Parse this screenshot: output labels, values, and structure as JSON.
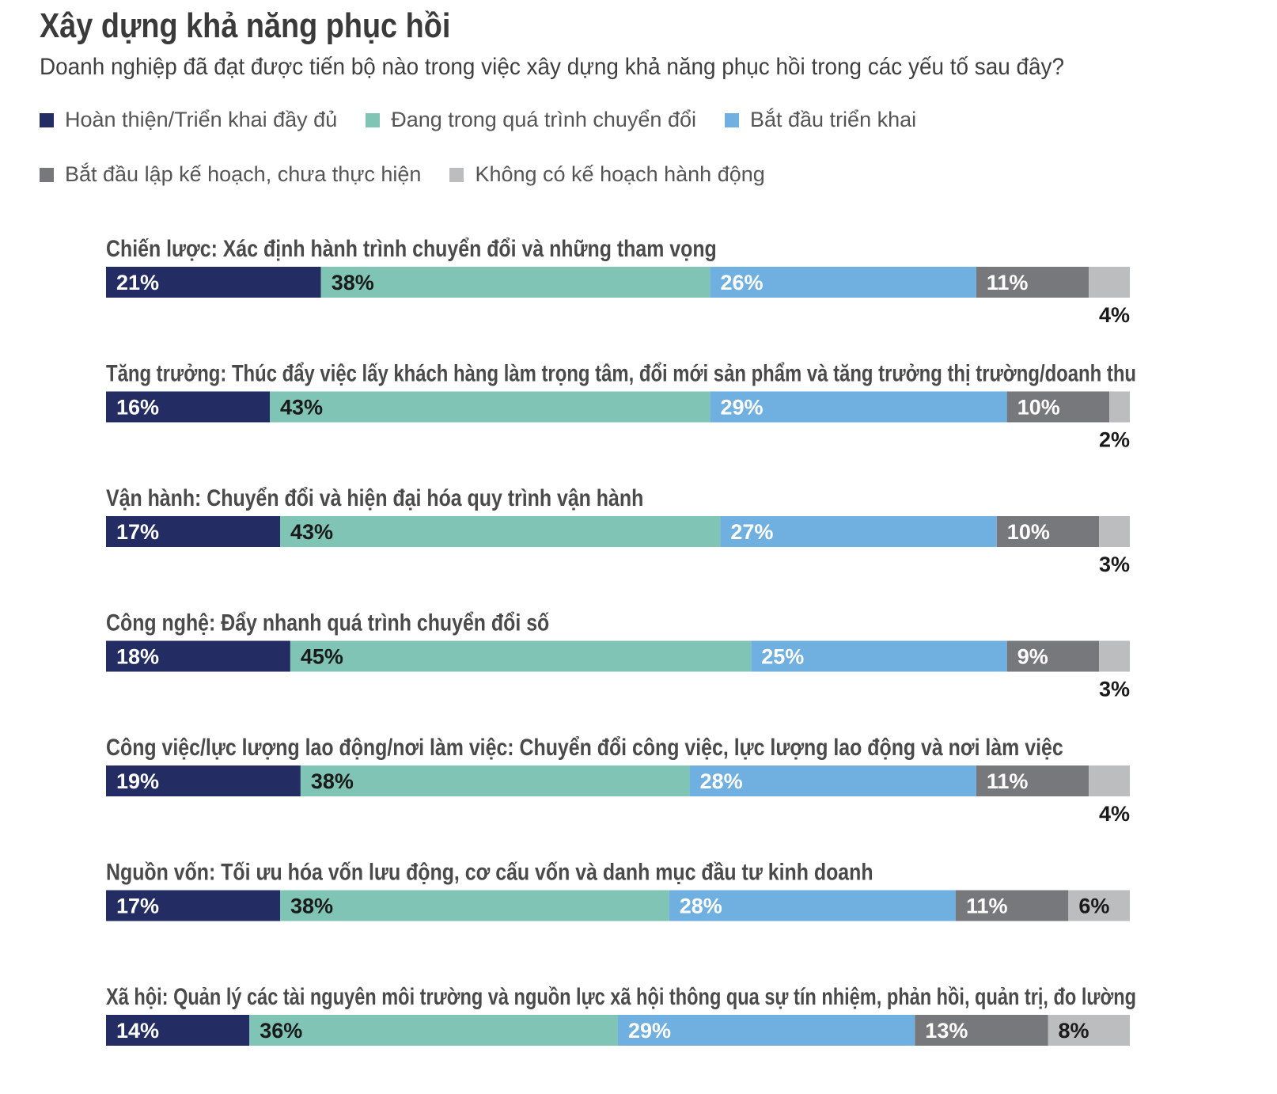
{
  "title": "Xây dựng khả năng phục hồi",
  "subtitle": "Doanh nghiệp đã đạt được tiến bộ nào trong việc xây dựng khả năng phục hồi trong các yếu tố sau đây?",
  "chart_data": {
    "type": "bar",
    "orientation": "horizontal-stacked-100",
    "title": "Xây dựng khả năng phục hồi",
    "subtitle": "Doanh nghiệp đã đạt được tiến bộ nào trong việc xây dựng khả năng phục hồi trong các yếu tố sau đây?",
    "legend_placement": "top",
    "grid": false,
    "xlim": [
      0,
      100
    ],
    "categories": [
      "Chiến lược: Xác định hành trình chuyển đổi và những tham vọng",
      "Tăng trưởng: Thúc đẩy việc lấy khách hàng làm trọng tâm, đổi mới sản phẩm và tăng trưởng thị trường/doanh thu",
      "Vận hành: Chuyển đổi và hiện đại hóa quy trình vận hành",
      "Công nghệ: Đẩy nhanh quá trình chuyển đổi số",
      "Công việc/lực lượng lao động/nơi làm việc: Chuyển đổi công việc, lực lượng lao động và nơi làm việc",
      "Nguồn vốn: Tối ưu hóa vốn lưu động, cơ cấu vốn và danh mục đầu tư kinh doanh",
      "Xã hội: Quản lý các tài nguyên môi trường và nguồn lực xã hội thông qua sự tín nhiệm, phản hồi, quản trị, đo lường"
    ],
    "series": [
      {
        "name": "Hoàn thiện/Triển khai đầy đủ",
        "color": "#232c63",
        "label_color": "#ffffff",
        "values": [
          21,
          16,
          17,
          18,
          19,
          17,
          14
        ]
      },
      {
        "name": "Đang trong quá trình chuyển đổi",
        "color": "#7fc4b4",
        "label_color": "#1a1a1a",
        "values": [
          38,
          43,
          43,
          45,
          38,
          38,
          36
        ]
      },
      {
        "name": "Bắt đầu triển khai",
        "color": "#6fb0e0",
        "label_color": "#ffffff",
        "values": [
          26,
          29,
          27,
          25,
          28,
          28,
          29
        ]
      },
      {
        "name": "Bắt đầu lập kế hoạch, chưa thực hiện",
        "color": "#77787b",
        "label_color": "#ffffff",
        "values": [
          11,
          10,
          10,
          9,
          11,
          11,
          13
        ]
      },
      {
        "name": "Không có kế hoạch hành động",
        "color": "#bcbdbf",
        "label_color": "#1a1a1a",
        "values": [
          4,
          2,
          3,
          3,
          4,
          6,
          8
        ]
      }
    ],
    "data_labels": [
      [
        "21%",
        "38%",
        "26%",
        "11%",
        "4%"
      ],
      [
        "16%",
        "43%",
        "29%",
        "10%",
        "2%"
      ],
      [
        "17%",
        "43%",
        "27%",
        "10%",
        "3%"
      ],
      [
        "18%",
        "45%",
        "25%",
        "9%",
        "3%"
      ],
      [
        "19%",
        "38%",
        "28%",
        "11%",
        "4%"
      ],
      [
        "17%",
        "38%",
        "28%",
        "11%",
        "6%"
      ],
      [
        "14%",
        "36%",
        "29%",
        "13%",
        "8%"
      ]
    ]
  }
}
